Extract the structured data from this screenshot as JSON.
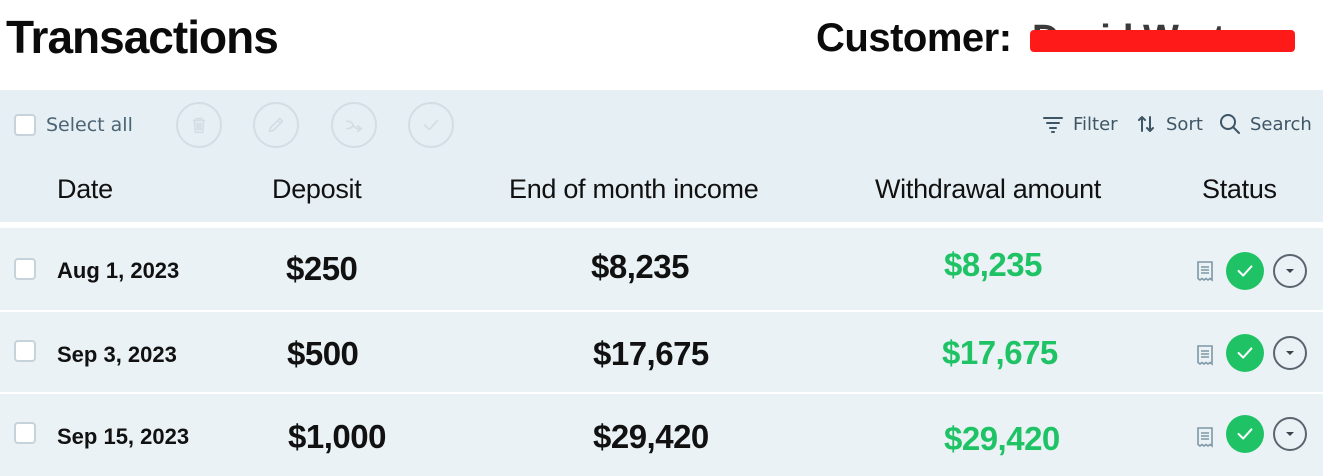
{
  "header": {
    "title": "Transactions",
    "customer_label": "Customer:",
    "customer_name": "David Werter"
  },
  "toolbar": {
    "select_all_label": "Select all",
    "filter_label": "Filter",
    "sort_label": "Sort",
    "search_label": "Search"
  },
  "table": {
    "columns": [
      "Date",
      "Deposit",
      "End of month income",
      "Withdrawal amount",
      "Status"
    ],
    "rows": [
      {
        "date": "Aug 1, 2023",
        "deposit": "$250",
        "income": "$8,235",
        "withdrawal": "$8,235",
        "status": "completed"
      },
      {
        "date": "Sep 3, 2023",
        "deposit": "$500",
        "income": "$17,675",
        "withdrawal": "$17,675",
        "status": "completed"
      },
      {
        "date": "Sep 15, 2023",
        "deposit": "$1,000",
        "income": "$29,420",
        "withdrawal": "$29,420",
        "status": "completed"
      }
    ]
  },
  "colors": {
    "accent_green": "#1fc365",
    "panel_bg": "#e6eff3",
    "redaction": "#ff1a1a"
  },
  "icons": {
    "toolbar": [
      "trash-icon",
      "edit-icon",
      "transfer-icon",
      "check-icon",
      "filter-icon",
      "sort-icon",
      "search-icon"
    ],
    "status": [
      "receipt-icon",
      "check-circle-icon",
      "chevron-down-icon"
    ]
  }
}
